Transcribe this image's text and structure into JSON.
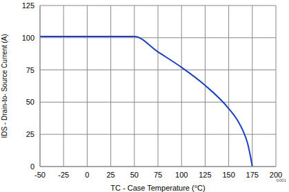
{
  "chart_data": {
    "type": "line",
    "x_label": "TC - Case Temperature (°C)",
    "y_label": "IDS - Drain-to- Source Current (A)",
    "annotation": "G001",
    "x": [
      -50,
      -25,
      0,
      25,
      50,
      75,
      100,
      125,
      150,
      160,
      165,
      170,
      173,
      175
    ],
    "values": [
      101,
      101,
      101,
      101,
      101,
      89,
      77,
      63,
      45,
      35,
      28,
      18,
      8,
      0
    ],
    "color": "#1f3fbf",
    "xlim": [
      -50,
      200
    ],
    "xticks": [
      -50,
      -25,
      0,
      25,
      50,
      75,
      100,
      125,
      150,
      175,
      200
    ],
    "ylim": [
      0,
      125
    ],
    "yticks": [
      0,
      25,
      50,
      75,
      100,
      125
    ],
    "grid": true
  }
}
